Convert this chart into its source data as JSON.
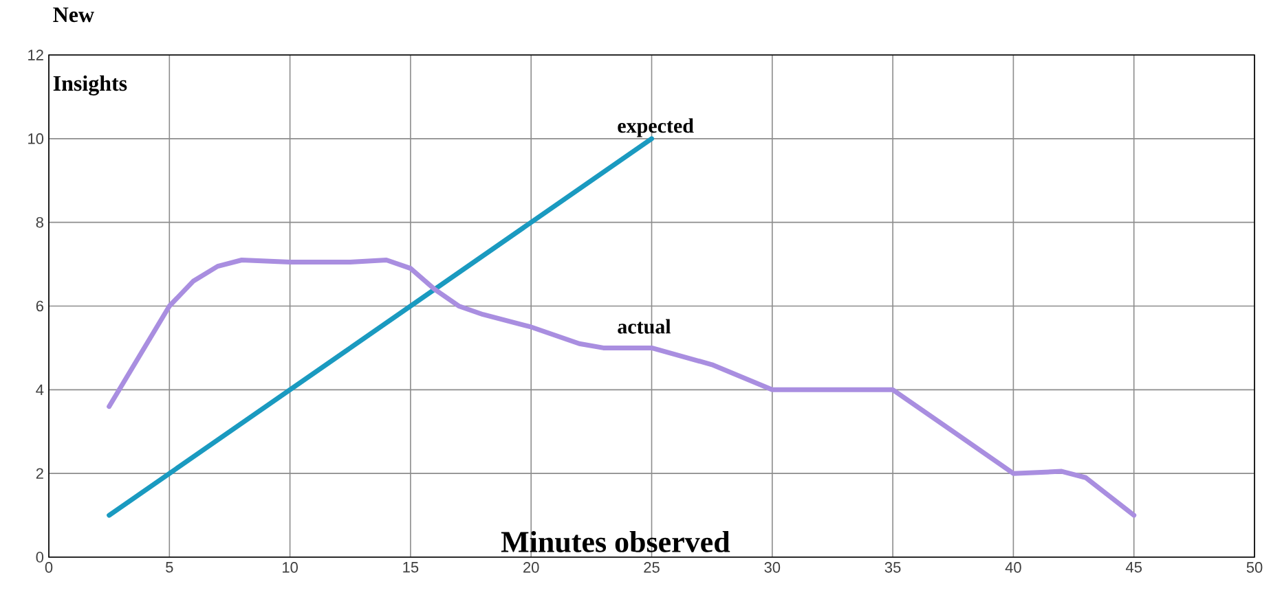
{
  "chart_data": {
    "type": "line",
    "xlabel": "Minutes  observed",
    "ylabel": "New Insights",
    "series": [
      {
        "name": "expected",
        "color": "#1a9ac0",
        "x": [
          2.5,
          25
        ],
        "values": [
          1,
          10
        ]
      },
      {
        "name": "actual",
        "color": "#a98ee0",
        "x": [
          2.5,
          5,
          6,
          7,
          8,
          10,
          12.5,
          14,
          15,
          16,
          17,
          18,
          20,
          22,
          23,
          25,
          27.5,
          30,
          32.5,
          35,
          37.5,
          40,
          42,
          43,
          45
        ],
        "values": [
          3.6,
          6,
          6.6,
          6.95,
          7.1,
          7.05,
          7.05,
          7.1,
          6.9,
          6.4,
          6,
          5.8,
          5.5,
          5.1,
          5,
          5,
          4.6,
          4,
          4,
          4,
          3,
          2,
          2.05,
          1.9,
          1
        ]
      }
    ],
    "xlim": [
      0,
      50
    ],
    "ylim": [
      0,
      12
    ],
    "xticks": [
      0,
      5,
      10,
      15,
      20,
      25,
      30,
      35,
      40,
      45,
      50
    ],
    "yticks": [
      0,
      2,
      4,
      6,
      8,
      10,
      12
    ],
    "grid": true,
    "legend": false,
    "marker": "none",
    "line_style": "solid"
  }
}
